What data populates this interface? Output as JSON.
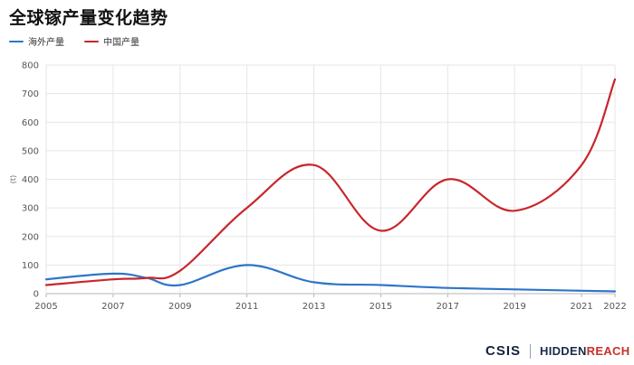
{
  "chart_data": {
    "type": "line",
    "title": "全球镓产量变化趋势",
    "ylabel": "(t)",
    "ylim": [
      0,
      800
    ],
    "yticks": [
      0,
      100,
      200,
      300,
      400,
      500,
      600,
      700,
      800
    ],
    "x": [
      2005,
      2007,
      2008,
      2009,
      2011,
      2013,
      2015,
      2017,
      2019,
      2021,
      2022
    ],
    "xticks": [
      "2005",
      "2007",
      "2009",
      "2011",
      "2013",
      "2015",
      "2017",
      "2019",
      "2021",
      "2022"
    ],
    "grid": true,
    "legend_position": "top-left",
    "series": [
      {
        "name": "海外产量",
        "color": "#2e75c8",
        "values": [
          50,
          70,
          55,
          30,
          100,
          40,
          30,
          20,
          15,
          10,
          8
        ]
      },
      {
        "name": "中国产量",
        "color": "#c8262b",
        "values": [
          30,
          50,
          55,
          80,
          300,
          450,
          220,
          400,
          290,
          450,
          750
        ]
      }
    ]
  },
  "footer": {
    "brand1": "CSIS",
    "brand2a": "HIDDEN",
    "brand2b": "REACH"
  }
}
